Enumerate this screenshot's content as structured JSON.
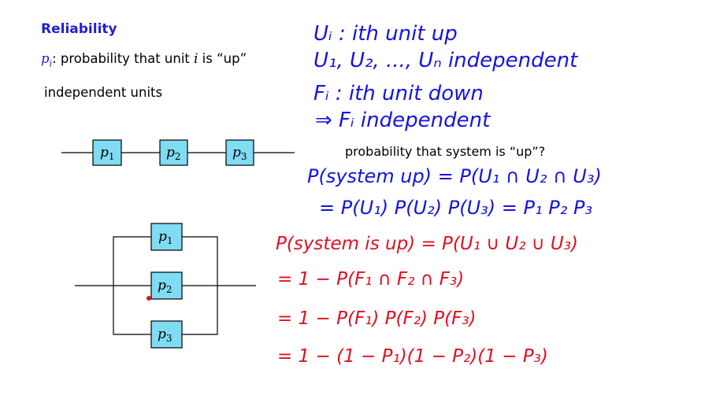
{
  "slide": {
    "title": "Reliability",
    "definition": {
      "symbol": "p",
      "symbol_sub": "i",
      "text_before": ": probability that unit ",
      "unit_var": "i",
      "text_after": " is “up”"
    },
    "independent_units": "independent units",
    "question": "probability that system is “up”?"
  },
  "series_diagram": {
    "boxes": [
      {
        "sym": "p",
        "sub": "1"
      },
      {
        "sym": "p",
        "sub": "2"
      },
      {
        "sym": "p",
        "sub": "3"
      }
    ]
  },
  "parallel_diagram": {
    "boxes": [
      {
        "sym": "p",
        "sub": "1"
      },
      {
        "sym": "p",
        "sub": "2"
      },
      {
        "sym": "p",
        "sub": "3"
      }
    ]
  },
  "handwritten": {
    "blue": [
      "Uᵢ : ith unit up",
      "U₁, U₂, ..., Uₙ  independent",
      "Fᵢ : ith unit down",
      "⇒ Fᵢ independent",
      "P(system up) = P(U₁ ∩ U₂ ∩ U₃)",
      "= P(U₁) P(U₂) P(U₃) = P₁ P₂ P₃"
    ],
    "red": [
      "P(system is up) = P(U₁ ∪ U₂ ∪ U₃)",
      "= 1 − P(F₁ ∩ F₂ ∩ F₃)",
      "= 1 − P(F₁) P(F₂) P(F₃)",
      "= 1 − (1 − P₁)(1 − P₂)(1 − P₃)"
    ]
  },
  "colors": {
    "title": "#1f1fd0",
    "ink_blue": "#1313e6",
    "ink_red": "#e01020",
    "box_fill": "#7fdcf2"
  }
}
